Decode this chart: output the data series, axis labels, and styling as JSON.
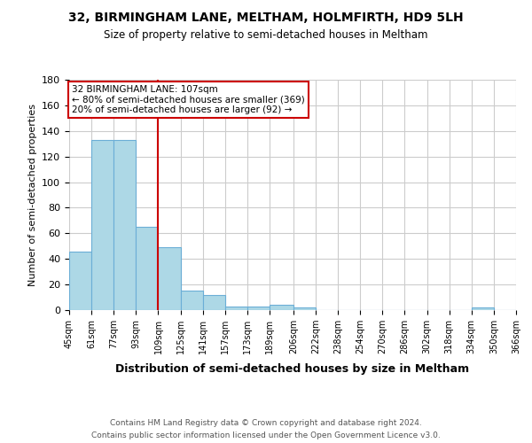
{
  "title": "32, BIRMINGHAM LANE, MELTHAM, HOLMFIRTH, HD9 5LH",
  "subtitle": "Size of property relative to semi-detached houses in Meltham",
  "xlabel": "Distribution of semi-detached houses by size in Meltham",
  "ylabel": "Number of semi-detached properties",
  "footer_line1": "Contains HM Land Registry data © Crown copyright and database right 2024.",
  "footer_line2": "Contains public sector information licensed under the Open Government Licence v3.0.",
  "annotation_line1": "32 BIRMINGHAM LANE: 107sqm",
  "annotation_line2": "← 80% of semi-detached houses are smaller (369)",
  "annotation_line3": "20% of semi-detached houses are larger (92) →",
  "property_size": 107,
  "bin_edges": [
    45,
    61,
    77,
    93,
    109,
    125,
    141,
    157,
    173,
    189,
    206,
    222,
    238,
    254,
    270,
    286,
    302,
    318,
    334,
    350,
    366
  ],
  "bin_labels": [
    "45sqm",
    "61sqm",
    "77sqm",
    "93sqm",
    "109sqm",
    "125sqm",
    "141sqm",
    "157sqm",
    "173sqm",
    "189sqm",
    "206sqm",
    "222sqm",
    "238sqm",
    "254sqm",
    "270sqm",
    "286sqm",
    "302sqm",
    "318sqm",
    "334sqm",
    "350sqm",
    "366sqm"
  ],
  "counts": [
    46,
    133,
    133,
    65,
    49,
    15,
    12,
    3,
    3,
    4,
    2,
    0,
    0,
    0,
    0,
    0,
    0,
    0,
    2,
    0
  ],
  "bar_color": "#add8e6",
  "bar_edge_color": "#6baed6",
  "vline_color": "#cc0000",
  "vline_x": 109,
  "ylim": [
    0,
    180
  ],
  "yticks": [
    0,
    20,
    40,
    60,
    80,
    100,
    120,
    140,
    160,
    180
  ],
  "background_color": "#ffffff",
  "grid_color": "#cccccc"
}
